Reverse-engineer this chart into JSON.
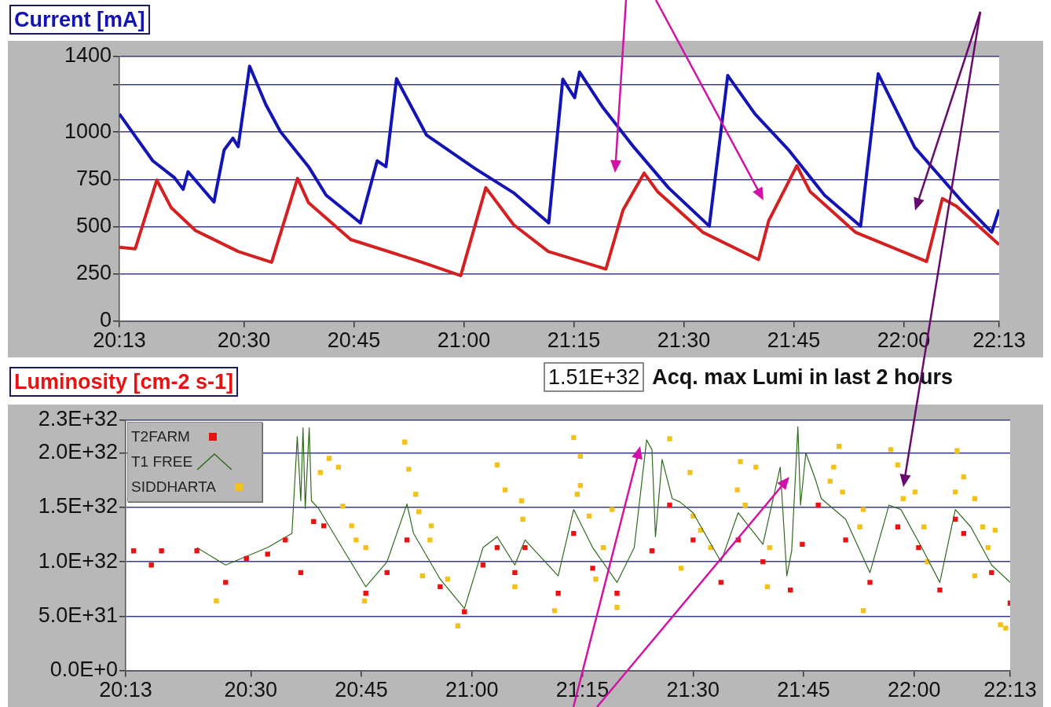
{
  "chart_data": [
    {
      "type": "line",
      "title": "Current [mA]",
      "xlim": [
        20.217,
        22.217
      ],
      "ylim": [
        0,
        1400
      ],
      "xticks": [
        {
          "value": 20.217,
          "label": "20:13"
        },
        {
          "value": 20.5,
          "label": "20:30"
        },
        {
          "value": 20.75,
          "label": "20:45"
        },
        {
          "value": 21,
          "label": "21:00"
        },
        {
          "value": 21.25,
          "label": "21:15"
        },
        {
          "value": 21.5,
          "label": "21:30"
        },
        {
          "value": 21.75,
          "label": "21:45"
        },
        {
          "value": 22,
          "label": "22:00"
        },
        {
          "value": 22.217,
          "label": "22:13"
        }
      ],
      "yticks": [
        0,
        250,
        500,
        750,
        1000,
        {
          "value": 1250,
          "label": null
        },
        1400
      ],
      "grid": "y",
      "marker": "none",
      "line_style": "solid",
      "series": [
        {
          "color": "#1414b4",
          "x": [
            20.217,
            20.293,
            20.342,
            20.362,
            20.373,
            20.432,
            20.455,
            20.475,
            20.487,
            20.513,
            20.55,
            20.583,
            20.647,
            20.687,
            20.765,
            20.803,
            20.823,
            20.847,
            20.915,
            21.025,
            21.113,
            21.193,
            21.225,
            21.252,
            21.263,
            21.315,
            21.387,
            21.465,
            21.558,
            21.6,
            21.662,
            21.74,
            21.82,
            21.902,
            21.942,
            22.025,
            22.135,
            22.2,
            22.217
          ],
          "values": [
            1096,
            848,
            759,
            697,
            790,
            630,
            905,
            968,
            923,
            1349,
            1145,
            1003,
            817,
            666,
            519,
            848,
            817,
            1283,
            985,
            808,
            679,
            519,
            1280,
            1182,
            1318,
            1134,
            919,
            706,
            502,
            1300,
            1096,
            901,
            666,
            502,
            1309,
            919,
            626,
            470,
            590
          ]
        },
        {
          "color": "#d42020",
          "x": [
            20.217,
            20.253,
            20.302,
            20.335,
            20.39,
            20.487,
            20.563,
            20.622,
            20.647,
            20.743,
            20.905,
            20.993,
            21.05,
            21.113,
            21.192,
            21.323,
            21.362,
            21.41,
            21.44,
            21.543,
            21.67,
            21.693,
            21.757,
            21.787,
            21.89,
            22.052,
            22.088,
            22.12,
            22.217
          ],
          "values": [
            390,
            382,
            746,
            599,
            479,
            368,
            311,
            755,
            626,
            431,
            311,
            240,
            706,
            510,
            368,
            275,
            588,
            783,
            686,
            470,
            325,
            530,
            822,
            686,
            470,
            315,
            648,
            608,
            404
          ]
        }
      ]
    },
    {
      "type": "scatter",
      "title": "Luminosity [cm-2 s-1]",
      "annotations": [
        "1.51E+32",
        "Acq. max Lumi in last 2 hours"
      ],
      "xlim": [
        20.217,
        22.217
      ],
      "ylim": [
        0,
        2.3e+32
      ],
      "xticks": [
        {
          "value": 20.217,
          "label": "20:13"
        },
        {
          "value": 20.5,
          "label": "20:30"
        },
        {
          "value": 20.75,
          "label": "20:45"
        },
        {
          "value": 21,
          "label": "21:00"
        },
        {
          "value": 21.25,
          "label": "21:15"
        },
        {
          "value": 21.5,
          "label": "21:30"
        },
        {
          "value": 21.75,
          "label": "21:45"
        },
        {
          "value": 22,
          "label": "22:00"
        },
        {
          "value": 22.217,
          "label": "22:13"
        }
      ],
      "yticks": [
        {
          "value": 0,
          "label": "0.0E+0"
        },
        {
          "value": 5e+31,
          "label": "5.0E+31"
        },
        {
          "value": 1e+32,
          "label": "1.0E+32"
        },
        {
          "value": 1.5e+32,
          "label": "1.5E+32"
        },
        {
          "value": 2e+32,
          "label": "2.0E+32"
        },
        {
          "value": 2.3e+32,
          "label": "2.3E+32"
        }
      ],
      "grid": "y",
      "legend": "top left",
      "marker": "square",
      "series": [
        {
          "name": "T2FARM",
          "color": "#e81212",
          "x": [
            20.235,
            20.275,
            20.298,
            20.378,
            20.443,
            20.49,
            20.538,
            20.578,
            20.613,
            20.642,
            20.665,
            20.76,
            20.808,
            20.853,
            20.928,
            20.983,
            21.025,
            21.057,
            21.097,
            21.12,
            21.195,
            21.23,
            21.273,
            21.328,
            21.407,
            21.447,
            21.5,
            21.563,
            21.602,
            21.658,
            21.72,
            21.747,
            21.783,
            21.845,
            21.9,
            21.963,
            22.01,
            22.058,
            22.093,
            22.112,
            22.175,
            22.217
          ],
          "values": [
            1.1e+32,
            9.7e+31,
            1.1e+32,
            1.1e+32,
            8.1e+31,
            1.03e+32,
            1.07e+32,
            1.2e+32,
            9e+31,
            1.37e+32,
            1.33e+32,
            7.1e+31,
            9e+31,
            1.2e+32,
            7.7e+31,
            5.4e+31,
            9.7e+31,
            1.13e+32,
            9e+31,
            1.13e+32,
            7.1e+31,
            1.26e+32,
            9.4e+31,
            7.1e+31,
            1.1e+32,
            1.52e+32,
            1.2e+32,
            8.1e+31,
            1.2e+32,
            1e+32,
            7.4e+31,
            1.16e+32,
            1.52e+32,
            1.2e+32,
            8.1e+31,
            1.32e+32,
            1.13e+32,
            7.4e+31,
            1.39e+32,
            1.26e+32,
            9e+31,
            6.2e+31
          ]
        },
        {
          "name": "T1 FREE",
          "type": "line",
          "marker": "none",
          "color": "#2f6a1c",
          "x": [
            20.378,
            20.443,
            20.538,
            20.593,
            20.605,
            20.613,
            20.618,
            20.623,
            20.632,
            20.637,
            20.653,
            20.76,
            20.808,
            20.853,
            20.868,
            20.928,
            20.983,
            21.025,
            21.057,
            21.097,
            21.12,
            21.195,
            21.23,
            21.273,
            21.328,
            21.367,
            21.395,
            21.407,
            21.415,
            21.43,
            21.453,
            21.47,
            21.5,
            21.563,
            21.602,
            21.658,
            21.697,
            21.712,
            21.723,
            21.737,
            21.743,
            21.755,
            21.778,
            21.79,
            21.845,
            21.9,
            21.943,
            21.97,
            22.017,
            22.058,
            22.093,
            22.128,
            22.175,
            22.217
          ],
          "values": [
            1.13e+32,
            9.7e+31,
            1.13e+32,
            1.26e+32,
            2.15e+32,
            1.56e+32,
            2.23e+32,
            1.49e+32,
            2.23e+32,
            1.56e+32,
            1.49e+32,
            7.7e+31,
            1e+32,
            1.53e+32,
            1.26e+32,
            8.4e+31,
            5.7e+31,
            1.13e+32,
            1.23e+32,
            9.7e+31,
            1.2e+32,
            8.7e+31,
            1.48e+32,
            1.13e+32,
            8.1e+31,
            1.13e+32,
            2.12e+32,
            2.03e+32,
            1.23e+32,
            1.94e+32,
            1.58e+32,
            1.55e+32,
            1.45e+32,
            1e+32,
            1.45e+32,
            1.16e+32,
            1.87e+32,
            8.7e+31,
            1.1e+32,
            2.24e+32,
            1.52e+32,
            2e+32,
            1.74e+32,
            1.58e+32,
            1.39e+32,
            9e+31,
            1.52e+32,
            1.48e+32,
            1.13e+32,
            8.1e+31,
            1.48e+32,
            1.32e+32,
            9.7e+31,
            8.1e+31
          ]
        },
        {
          "name": "SIDDHARTA",
          "color": "#f2c21a",
          "x": [
            20.422,
            20.657,
            20.677,
            20.698,
            20.708,
            20.728,
            20.738,
            20.76,
            20.757,
            20.848,
            20.857,
            20.873,
            20.88,
            20.908,
            20.905,
            20.888,
            20.945,
            20.968,
            21.057,
            21.075,
            21.112,
            21.115,
            21.097,
            21.23,
            21.245,
            21.245,
            21.238,
            21.265,
            21.297,
            21.28,
            21.187,
            21.317,
            21.328,
            21.447,
            21.493,
            21.5,
            21.517,
            21.54,
            21.473,
            21.607,
            21.642,
            21.6,
            21.618,
            21.673,
            21.668,
            21.83,
            21.818,
            21.81,
            21.838,
            21.885,
            21.877,
            21.885,
            21.947,
            21.963,
            21.975,
            22.002,
            22.022,
            22.03,
            22.097,
            22.112,
            22.093,
            22.137,
            22.155,
            22.183,
            22.167,
            22.137,
            22.195,
            22.207
          ],
          "values": [
            6.4e+31,
            1.82e+32,
            1.95e+32,
            1.87e+32,
            1.51e+32,
            1.33e+32,
            1.2e+32,
            1.13e+32,
            6.4e+31,
            2.1e+32,
            1.85e+32,
            1.62e+32,
            1.46e+32,
            1.33e+32,
            1.2e+32,
            8.7e+31,
            8.4e+31,
            4.1e+31,
            1.89e+32,
            1.66e+32,
            1.56e+32,
            1.39e+32,
            7.7e+31,
            2.14e+32,
            1.97e+32,
            1.7e+32,
            1.62e+32,
            1.42e+32,
            1.13e+32,
            8.4e+31,
            5.5e+31,
            1.48e+32,
            5.8e+31,
            2.13e+32,
            1.82e+32,
            1.42e+32,
            1.29e+32,
            1.13e+32,
            9.4e+31,
            1.92e+32,
            1.87e+32,
            1.66e+32,
            1.52e+32,
            1.13e+32,
            7.7e+31,
            2.06e+32,
            1.87e+32,
            1.74e+32,
            1.64e+32,
            1.48e+32,
            1.32e+32,
            5.5e+31,
            2.03e+32,
            1.89e+32,
            1.58e+32,
            1.64e+32,
            1.32e+32,
            1e+32,
            2.02e+32,
            1.78e+32,
            1.64e+32,
            1.58e+32,
            1.32e+32,
            1.29e+32,
            1.13e+32,
            8.7e+31,
            4.2e+31,
            3.9e+31
          ]
        }
      ]
    }
  ]
}
